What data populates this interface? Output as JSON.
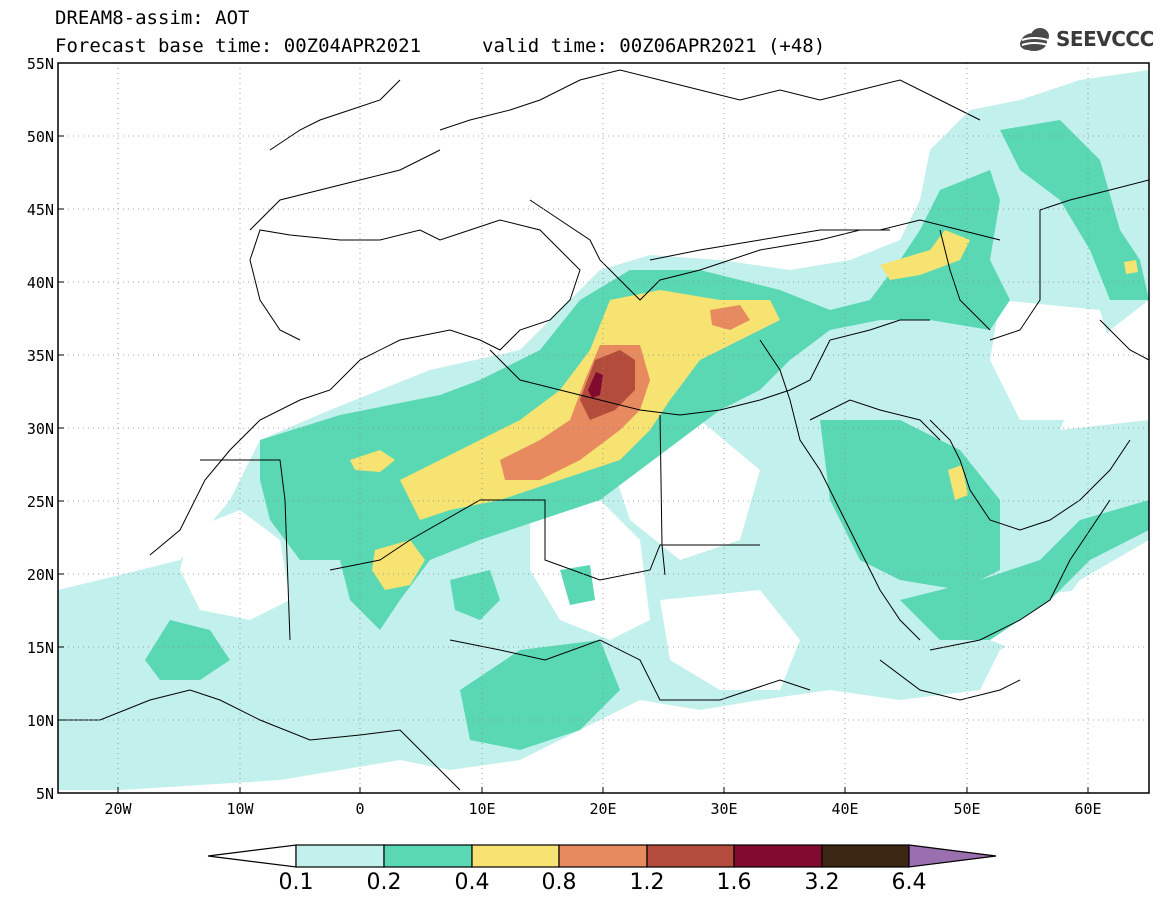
{
  "header": {
    "model_title": "DREAM8-assim: AOT",
    "base_time_label": "Forecast base time: 00Z04APR2021",
    "valid_time_label": "valid time: 00Z06APR2021 (+48)",
    "logo_text": "SEEVCCC"
  },
  "axes": {
    "lat_labels": [
      "55N",
      "50N",
      "45N",
      "40N",
      "35N",
      "30N",
      "25N",
      "20N",
      "15N",
      "10N",
      "5N"
    ],
    "lon_labels": [
      "20W",
      "10W",
      "0",
      "10E",
      "20E",
      "30E",
      "40E",
      "50E",
      "60E"
    ]
  },
  "colorbar": {
    "labels": [
      "0.1",
      "0.2",
      "0.4",
      "0.8",
      "1.2",
      "1.6",
      "3.2",
      "6.4"
    ],
    "colors": [
      "#ffffff",
      "#c2f0ec",
      "#5ad8b4",
      "#f7e372",
      "#e78a60",
      "#b44c3c",
      "#820a2e",
      "#3c2614",
      "#9a6fb0"
    ]
  },
  "map_data": {
    "extent": {
      "lon": [
        -25,
        65
      ],
      "lat": [
        5,
        55
      ]
    },
    "field": "Aerosol Optical Thickness"
  },
  "colors": {
    "band_01_02": "#c2f0ec",
    "band_02_04": "#5ad8b4",
    "band_04_08": "#f7e372",
    "band_08_12": "#e78a60",
    "band_12_16": "#b44c3c",
    "band_16_32": "#820a2e"
  }
}
